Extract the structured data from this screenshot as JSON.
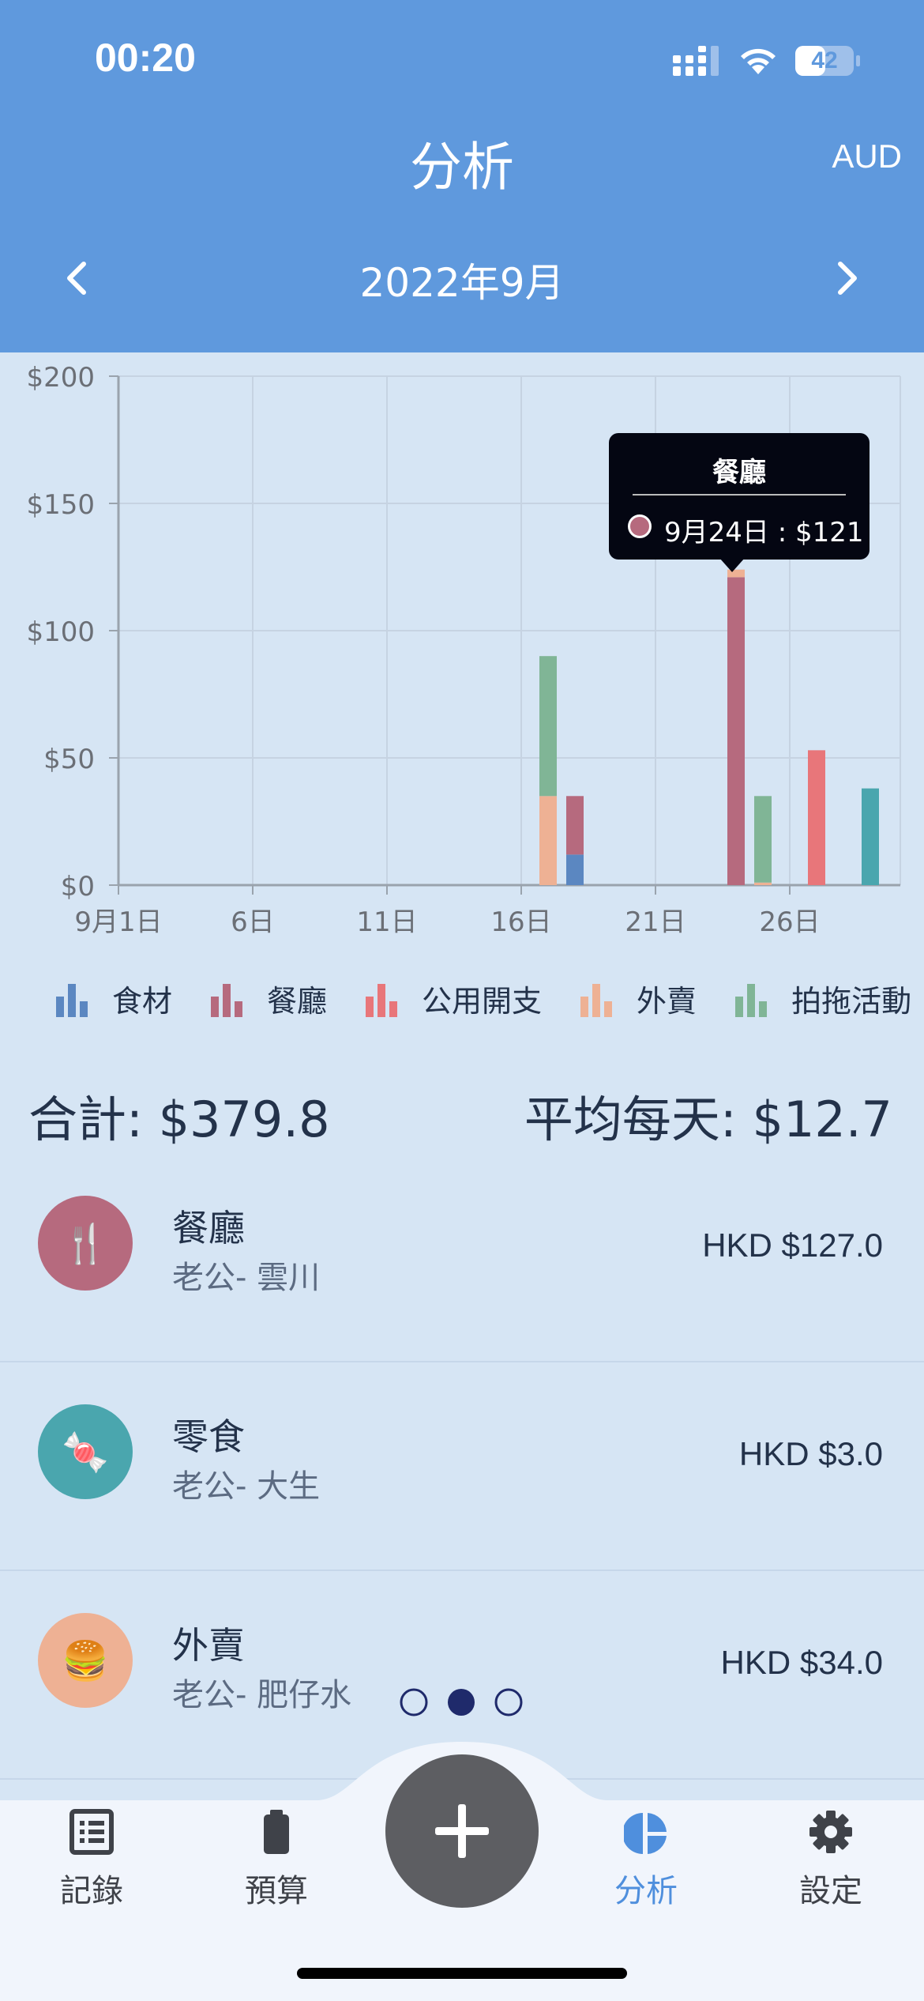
{
  "status_bar": {
    "time": "00:20",
    "battery": "42"
  },
  "header": {
    "title": "分析",
    "currency": "AUD",
    "month": "2022年9月"
  },
  "colors": {
    "header": "#5f99dd",
    "食材": "#5b87c1",
    "餐廳": "#b66a7e",
    "公用開支": "#e8767a",
    "外賣": "#eeb194",
    "拍拖活動": "#80b596",
    "零食": "#4aa6ae"
  },
  "chart_data": {
    "type": "bar",
    "stacked": true,
    "x_ticks": [
      "9月1日",
      "6日",
      "11日",
      "16日",
      "21日",
      "26日"
    ],
    "x_tick_days": [
      1,
      6,
      11,
      16,
      21,
      26
    ],
    "x_range_days": [
      1,
      30
    ],
    "y_ticks": [
      "$0",
      "$50",
      "$100",
      "$150",
      "$200"
    ],
    "ylim": [
      0,
      200
    ],
    "grid": true,
    "series": [
      {
        "name": "食材",
        "color": "#5b87c1",
        "points": [
          {
            "day": 18,
            "value": 12
          }
        ]
      },
      {
        "name": "餐廳",
        "color": "#b66a7e",
        "points": [
          {
            "day": 18,
            "value": 23
          },
          {
            "day": 24,
            "value": 121
          }
        ]
      },
      {
        "name": "公用開支",
        "color": "#e8767a",
        "points": [
          {
            "day": 27,
            "value": 53
          }
        ]
      },
      {
        "name": "外賣",
        "color": "#eeb194",
        "points": [
          {
            "day": 17,
            "value": 35
          },
          {
            "day": 24,
            "value": 3
          },
          {
            "day": 25,
            "value": 1
          }
        ]
      },
      {
        "name": "拍拖活動",
        "color": "#80b596",
        "points": [
          {
            "day": 17,
            "value": 55
          },
          {
            "day": 25,
            "value": 34
          }
        ]
      },
      {
        "name": "零食",
        "color": "#4aa6ae",
        "points": [
          {
            "day": 29,
            "value": 38
          }
        ]
      }
    ]
  },
  "tooltip": {
    "title": "餐廳",
    "text": "9月24日 : $121"
  },
  "legend": [
    "食材",
    "餐廳",
    "公用開支",
    "外賣",
    "拍拖活動"
  ],
  "summary": {
    "total": "合計: $379.8",
    "average": "平均每天: $12.7"
  },
  "list": [
    {
      "title": "餐廳",
      "subtitle": "老公- 雲川",
      "amount": "HKD $127.0",
      "icon": "🍴",
      "color": "#b66a7e"
    },
    {
      "title": "零食",
      "subtitle": "老公- 大生",
      "amount": "HKD $3.0",
      "icon": "🍬",
      "color": "#4aa6ae"
    },
    {
      "title": "外賣",
      "subtitle": "老公- 肥仔水",
      "amount": "HKD $34.0",
      "icon": "🍔",
      "color": "#eeb194"
    }
  ],
  "page_indicator": {
    "current": 2,
    "total": 3
  },
  "tabs": [
    {
      "label": "記錄",
      "icon": "list-icon"
    },
    {
      "label": "預算",
      "icon": "battery-icon"
    },
    {
      "label": "分析",
      "icon": "pie-chart-icon",
      "active": true
    },
    {
      "label": "設定",
      "icon": "gear-icon"
    }
  ]
}
